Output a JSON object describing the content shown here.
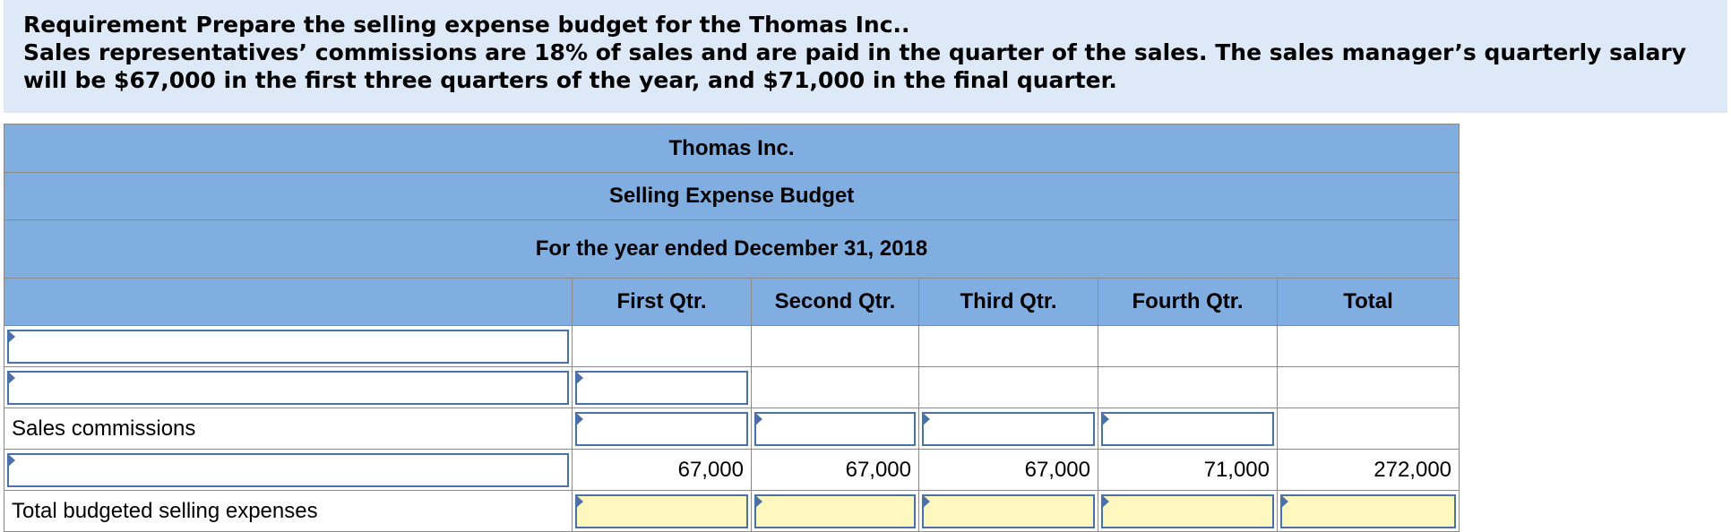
{
  "requirement": {
    "label": "Requirement",
    "text": "Prepare the selling expense budget for the Thomas Inc..",
    "detail": "Sales representatives’ commissions are 18% of sales and are paid in the quarter of the sales. The sales manager’s quarterly salary will be $67,000 in the first three quarters of the year, and $71,000 in the final quarter."
  },
  "budget": {
    "company": "Thomas Inc.",
    "title": "Selling Expense Budget",
    "period": "For the year ended December 31, 2018",
    "columns": [
      "First Qtr.",
      "Second Qtr.",
      "Third Qtr.",
      "Fourth Qtr.",
      "Total"
    ],
    "rows": [
      {
        "label": "",
        "values": [
          "",
          "",
          "",
          "",
          ""
        ]
      },
      {
        "label": "",
        "values": [
          "",
          "",
          "",
          "",
          ""
        ]
      },
      {
        "label": "Sales commissions",
        "values": [
          "",
          "",
          "",
          "",
          ""
        ]
      },
      {
        "label": "",
        "values": [
          "67,000",
          "67,000",
          "67,000",
          "71,000",
          "272,000"
        ]
      },
      {
        "label": "Total budgeted selling expenses",
        "values": [
          "",
          "",
          "",
          "",
          ""
        ]
      }
    ]
  }
}
